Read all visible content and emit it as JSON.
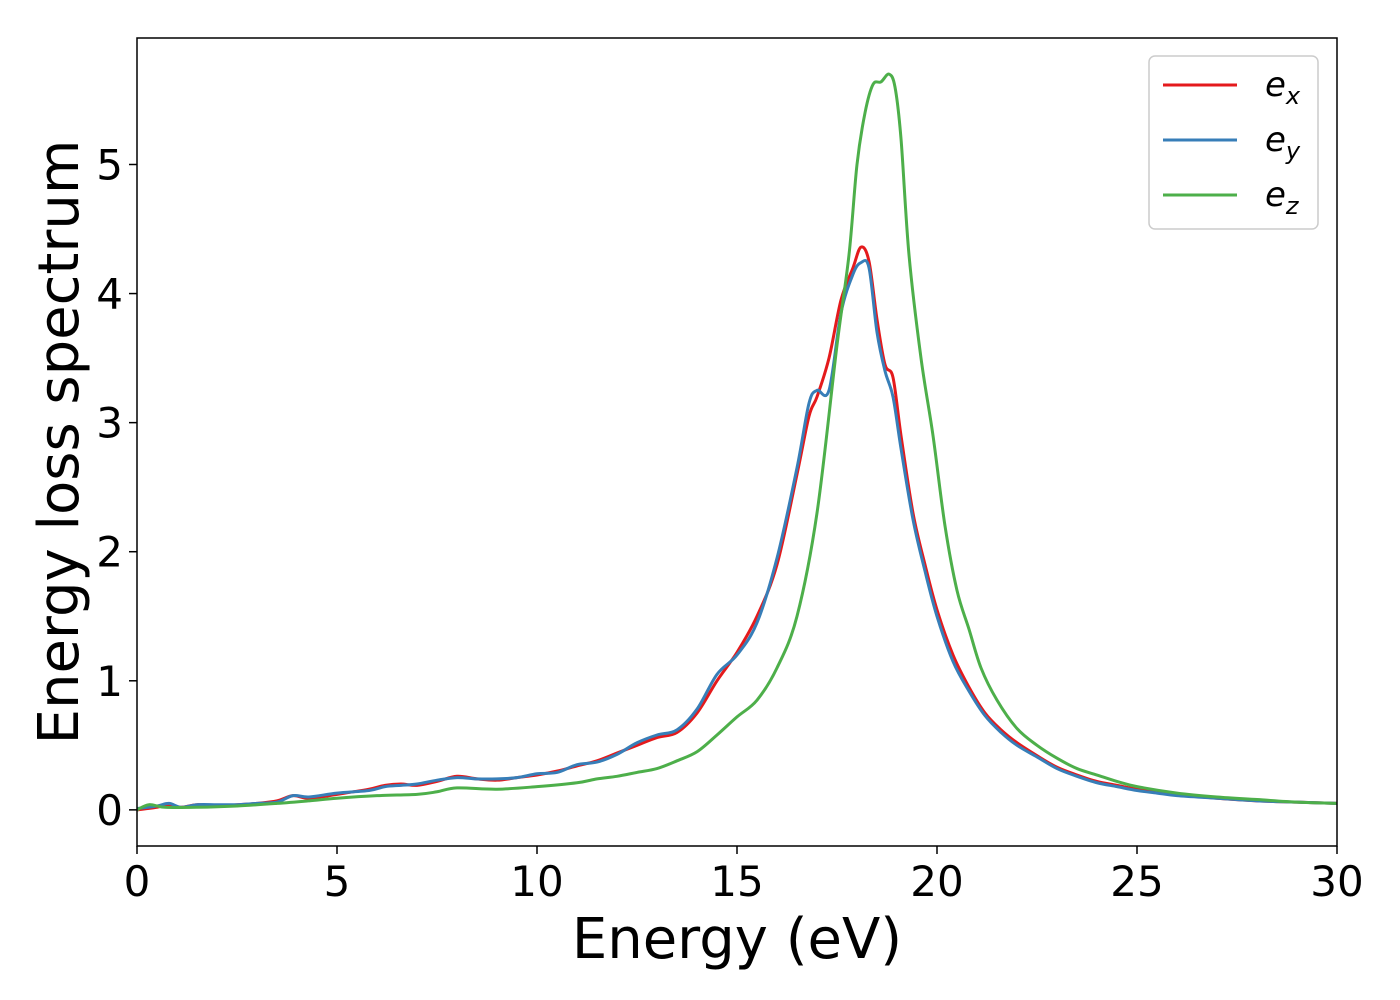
{
  "chart_data": {
    "type": "line",
    "title": "",
    "xlabel": "Energy (eV)",
    "ylabel": "Energy loss spectrum",
    "xlim": [
      0,
      30
    ],
    "ylim": [
      -0.28,
      5.98
    ],
    "xticks": [
      0,
      5,
      10,
      15,
      20,
      25,
      30
    ],
    "yticks": [
      0,
      1,
      2,
      3,
      4,
      5
    ],
    "xtick_labels": [
      "0",
      "5",
      "10",
      "15",
      "20",
      "25",
      "30"
    ],
    "ytick_labels": [
      "0",
      "1",
      "2",
      "3",
      "4",
      "5"
    ],
    "grid": false,
    "legend_position": "top-right",
    "series": [
      {
        "name": "e_x",
        "label_base": "e",
        "label_sub": "x",
        "color": "#e41a1c",
        "x": [
          0,
          0.5,
          0.8,
          1.1,
          1.5,
          2.0,
          2.5,
          3.0,
          3.5,
          3.9,
          4.3,
          5.0,
          5.8,
          6.2,
          6.6,
          7.0,
          7.5,
          8.0,
          8.5,
          9.0,
          9.5,
          10.0,
          10.5,
          11.0,
          11.5,
          12.0,
          12.5,
          13.0,
          13.5,
          14.0,
          14.5,
          15.0,
          15.5,
          16.0,
          16.5,
          16.8,
          17.0,
          17.3,
          17.6,
          17.9,
          18.1,
          18.3,
          18.5,
          18.7,
          18.9,
          19.1,
          19.4,
          19.7,
          20.0,
          20.4,
          20.8,
          21.2,
          21.6,
          22.0,
          22.5,
          23.0,
          23.5,
          24.0,
          24.5,
          25.0,
          25.5,
          26.0,
          27.0,
          28.0,
          29.0,
          30.0
        ],
        "y": [
          0.0,
          0.02,
          0.04,
          0.02,
          0.04,
          0.03,
          0.04,
          0.05,
          0.07,
          0.11,
          0.09,
          0.12,
          0.16,
          0.19,
          0.2,
          0.19,
          0.22,
          0.26,
          0.24,
          0.23,
          0.25,
          0.27,
          0.3,
          0.34,
          0.38,
          0.44,
          0.5,
          0.56,
          0.6,
          0.75,
          1.0,
          1.22,
          1.5,
          1.9,
          2.6,
          3.05,
          3.2,
          3.5,
          3.95,
          4.2,
          4.36,
          4.25,
          3.8,
          3.45,
          3.35,
          2.9,
          2.3,
          1.9,
          1.55,
          1.2,
          0.95,
          0.75,
          0.62,
          0.52,
          0.42,
          0.33,
          0.27,
          0.22,
          0.19,
          0.16,
          0.14,
          0.12,
          0.09,
          0.07,
          0.06,
          0.05
        ]
      },
      {
        "name": "e_y",
        "label_base": "e",
        "label_sub": "y",
        "color": "#377eb8",
        "x": [
          0,
          0.5,
          0.8,
          1.1,
          1.5,
          2.0,
          2.5,
          3.0,
          3.5,
          3.9,
          4.3,
          5.0,
          5.8,
          6.2,
          6.6,
          7.0,
          7.5,
          8.0,
          8.5,
          9.0,
          9.5,
          10.0,
          10.5,
          11.0,
          11.5,
          12.0,
          12.5,
          13.0,
          13.5,
          14.0,
          14.5,
          15.0,
          15.5,
          16.0,
          16.5,
          16.8,
          17.0,
          17.3,
          17.6,
          17.9,
          18.1,
          18.3,
          18.5,
          18.7,
          18.9,
          19.1,
          19.4,
          19.7,
          20.0,
          20.4,
          20.8,
          21.2,
          21.6,
          22.0,
          22.5,
          23.0,
          23.5,
          24.0,
          24.5,
          25.0,
          25.5,
          26.0,
          27.0,
          28.0,
          29.0,
          30.0
        ],
        "y": [
          0.01,
          0.03,
          0.05,
          0.02,
          0.04,
          0.04,
          0.04,
          0.05,
          0.06,
          0.11,
          0.1,
          0.13,
          0.15,
          0.18,
          0.19,
          0.2,
          0.23,
          0.25,
          0.24,
          0.24,
          0.25,
          0.28,
          0.29,
          0.35,
          0.37,
          0.43,
          0.52,
          0.58,
          0.62,
          0.78,
          1.05,
          1.2,
          1.45,
          1.95,
          2.65,
          3.15,
          3.25,
          3.25,
          3.85,
          4.15,
          4.24,
          4.2,
          3.7,
          3.4,
          3.2,
          2.8,
          2.25,
          1.85,
          1.5,
          1.15,
          0.92,
          0.73,
          0.6,
          0.5,
          0.41,
          0.32,
          0.26,
          0.21,
          0.18,
          0.15,
          0.13,
          0.11,
          0.09,
          0.07,
          0.06,
          0.05
        ]
      },
      {
        "name": "e_z",
        "label_base": "e",
        "label_sub": "z",
        "color": "#4daf4a",
        "x": [
          0,
          0.3,
          0.7,
          1.5,
          2.5,
          3.5,
          4.3,
          5.0,
          6.0,
          7.0,
          7.5,
          8.0,
          9.0,
          10.0,
          11.0,
          11.5,
          12.0,
          12.5,
          13.0,
          13.5,
          14.0,
          14.5,
          15.0,
          15.5,
          16.0,
          16.5,
          17.0,
          17.5,
          17.8,
          18.0,
          18.2,
          18.4,
          18.6,
          18.8,
          18.95,
          19.1,
          19.3,
          19.6,
          19.9,
          20.2,
          20.5,
          20.8,
          21.1,
          21.5,
          22.0,
          22.5,
          23.0,
          23.5,
          24.0,
          24.5,
          25.0,
          26.0,
          27.0,
          28.0,
          29.0,
          30.0
        ],
        "y": [
          0.0,
          0.04,
          0.02,
          0.02,
          0.03,
          0.05,
          0.07,
          0.09,
          0.11,
          0.12,
          0.14,
          0.17,
          0.16,
          0.18,
          0.21,
          0.24,
          0.26,
          0.29,
          0.32,
          0.38,
          0.45,
          0.58,
          0.72,
          0.85,
          1.1,
          1.5,
          2.3,
          3.6,
          4.3,
          5.0,
          5.4,
          5.62,
          5.64,
          5.7,
          5.6,
          5.2,
          4.3,
          3.5,
          2.9,
          2.2,
          1.7,
          1.4,
          1.1,
          0.85,
          0.63,
          0.5,
          0.4,
          0.32,
          0.27,
          0.22,
          0.18,
          0.13,
          0.1,
          0.08,
          0.06,
          0.05
        ]
      }
    ]
  }
}
